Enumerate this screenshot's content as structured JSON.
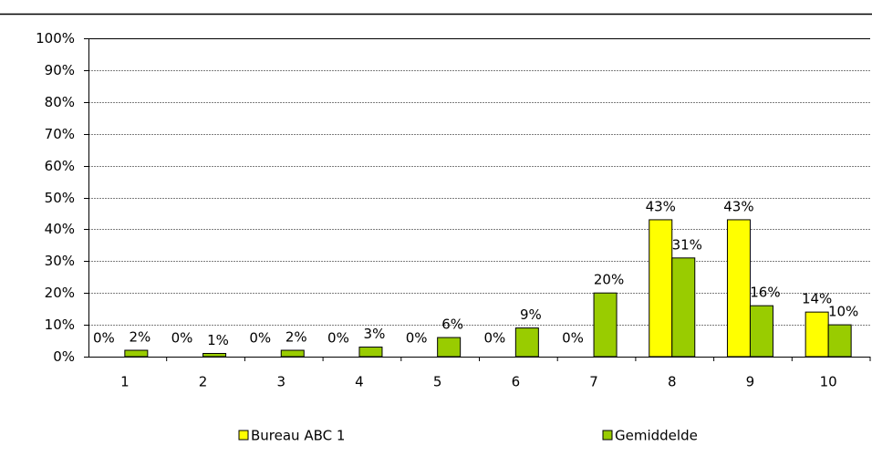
{
  "chart_data": {
    "type": "bar",
    "categories": [
      "1",
      "2",
      "3",
      "4",
      "5",
      "6",
      "7",
      "8",
      "9",
      "10"
    ],
    "series": [
      {
        "name": "Bureau ABC 1",
        "color": "#ffff00",
        "values": [
          0,
          0,
          0,
          0,
          0,
          0,
          0,
          43,
          43,
          14
        ],
        "value_labels": [
          "0%",
          "0%",
          "0%",
          "0%",
          "0%",
          "0%",
          "0%",
          "43%",
          "43%",
          "14%"
        ]
      },
      {
        "name": "Gemiddelde",
        "color": "#99cc00",
        "values": [
          2,
          1,
          2,
          3,
          6,
          9,
          20,
          31,
          16,
          10
        ],
        "value_labels": [
          "2%",
          "1%",
          "2%",
          "3%",
          "6%",
          "9%",
          "20%",
          "31%",
          "16%",
          "10%"
        ]
      }
    ],
    "ylim": [
      0,
      100
    ],
    "yticks": [
      {
        "value": 0,
        "label": "0%"
      },
      {
        "value": 10,
        "label": "10%"
      },
      {
        "value": 20,
        "label": "20%"
      },
      {
        "value": 30,
        "label": "30%"
      },
      {
        "value": 40,
        "label": "40%"
      },
      {
        "value": 50,
        "label": "50%"
      },
      {
        "value": 60,
        "label": "60%"
      },
      {
        "value": 70,
        "label": "70%"
      },
      {
        "value": 80,
        "label": "80%"
      },
      {
        "value": 90,
        "label": "90%"
      },
      {
        "value": 100,
        "label": "100%"
      }
    ],
    "grid": true,
    "legend": "bottom"
  }
}
